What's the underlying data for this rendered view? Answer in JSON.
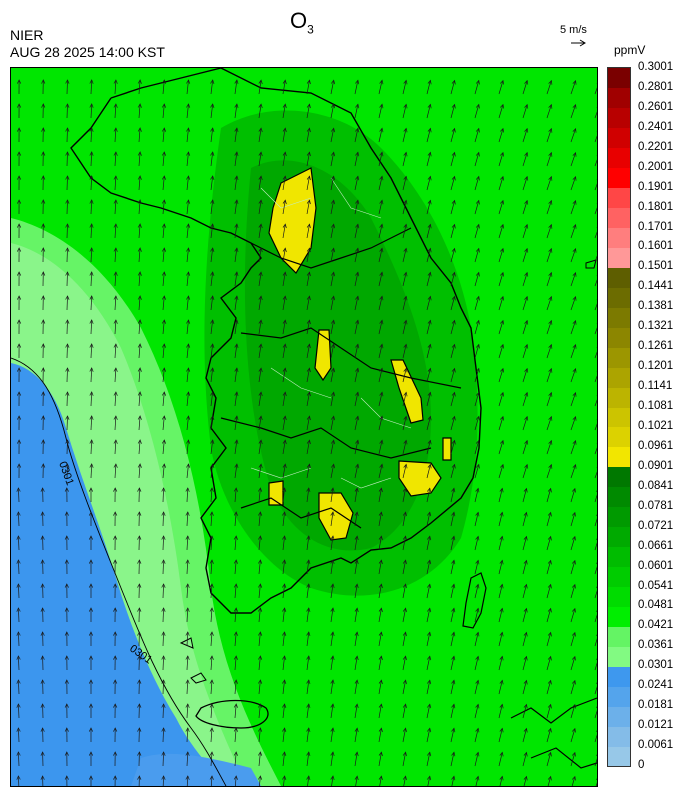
{
  "header": {
    "title_main": "O",
    "title_sub": "3",
    "agency": "NIER",
    "datetime": "AUG 28 2025 14:00 KST",
    "vector_scale_label": "5 m/s",
    "unit": "ppmV"
  },
  "map": {
    "contour_labels": [
      "0301",
      "0301"
    ],
    "icon": "wind-vector-arrows"
  },
  "colorbar": {
    "colors": [
      "#97c8e8",
      "#84bce8",
      "#6cb0ea",
      "#54a4ec",
      "#3e98ee",
      "#82fa82",
      "#64f464",
      "#00ee00",
      "#00dc00",
      "#00cc00",
      "#00bc00",
      "#00aa00",
      "#009a00",
      "#008a00",
      "#007800",
      "#f2e600",
      "#dcd200",
      "#ccc400",
      "#bcb400",
      "#aca400",
      "#9c9600",
      "#8c8600",
      "#7c7a00",
      "#6c6c00",
      "#5e5e00",
      "#ff9898",
      "#ff7e7e",
      "#ff6262",
      "#ff4646",
      "#ff0000",
      "#e80000",
      "#d00000",
      "#b80000",
      "#a00000",
      "#7a0000"
    ],
    "labels": [
      "0",
      "0.0061",
      "0.0121",
      "0.0181",
      "0.0241",
      "0.0301",
      "0.0361",
      "0.0421",
      "0.0481",
      "0.0541",
      "0.0601",
      "0.0661",
      "0.0721",
      "0.0781",
      "0.0841",
      "0.0901",
      "0.0961",
      "0.1021",
      "0.1081",
      "0.1141",
      "0.1201",
      "0.1261",
      "0.1321",
      "0.1381",
      "0.1441",
      "0.1501",
      "0.1601",
      "0.1701",
      "0.1801",
      "0.1901",
      "0.2001",
      "0.2201",
      "0.2401",
      "0.2601",
      "0.2801",
      "0.3001"
    ]
  }
}
